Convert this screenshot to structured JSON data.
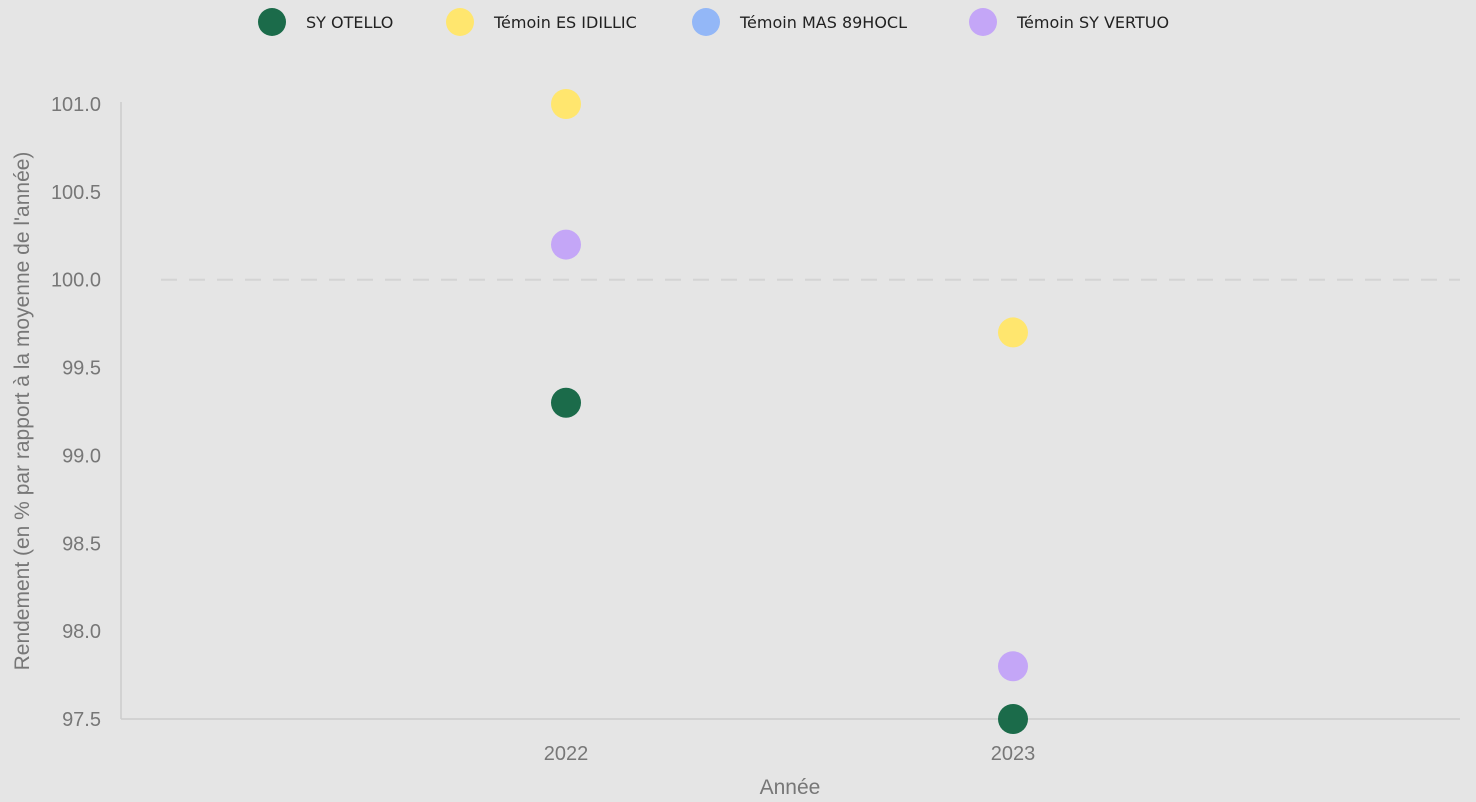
{
  "chart_data": {
    "type": "scatter",
    "title": "",
    "xlabel": "Année",
    "ylabel": "Rendement (en % par rapport à la moyenne de l'année)",
    "categories": [
      "2022",
      "2023"
    ],
    "ylim": [
      97.5,
      101.0
    ],
    "yticks": [
      "97.5",
      "98.0",
      "98.5",
      "99.0",
      "99.5",
      "100.0",
      "100.5",
      "101.0"
    ],
    "reference_line": 100.0,
    "grid": false,
    "legend_position": "top",
    "series": [
      {
        "name": "SY OTELLO",
        "color": "#1b6b4a",
        "values": [
          99.3,
          97.5
        ]
      },
      {
        "name": "Témoin ES IDILLIC",
        "color": "#ffe66e",
        "values": [
          101.0,
          99.7
        ]
      },
      {
        "name": "Témoin MAS 89HOCL",
        "color": "#93b7f7",
        "values": [
          null,
          null
        ]
      },
      {
        "name": "Témoin SY VERTUO",
        "color": "#c4a6f7",
        "values": [
          100.2,
          97.8
        ]
      }
    ]
  }
}
